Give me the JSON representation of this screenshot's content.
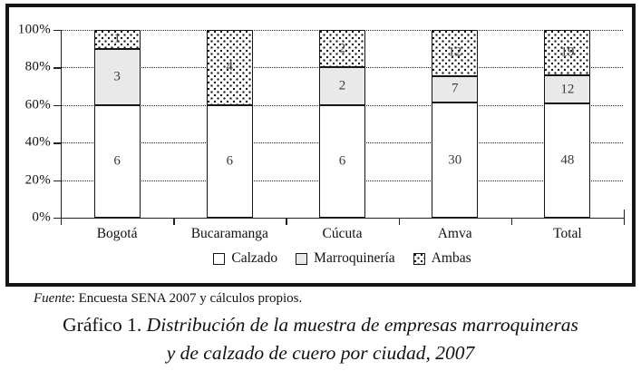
{
  "figure": {
    "source_prefix": "Fuente",
    "source_rest": ": Encuesta SENA 2007 y cálculos propios.",
    "caption_label": "Gráfico 1.",
    "caption_line1": "Distribución de la muestra de empresas marroquineras",
    "caption_line2": "y de calzado de cuero por ciudad, 2007"
  },
  "colors": {
    "frame": "#161616",
    "bar_border": "#161616",
    "calzado_fill": "#ffffff",
    "marroquineria_fill": "#e9e9e9",
    "ambas_dot": "#1a1a1a"
  },
  "chart_data": {
    "type": "bar",
    "subtype": "stacked-100-percent",
    "title": "",
    "xlabel": "",
    "ylabel": "",
    "categories": [
      "Bogotá",
      "Bucaramanga",
      "Cúcuta",
      "Amva",
      "Total"
    ],
    "series": [
      {
        "name": "Calzado",
        "fill": "white",
        "values": [
          6,
          6,
          6,
          30,
          48
        ]
      },
      {
        "name": "Marroquinería",
        "fill": "lightgray",
        "values": [
          3,
          0,
          2,
          7,
          12
        ]
      },
      {
        "name": "Ambas",
        "fill": "dotted",
        "values": [
          1,
          4,
          2,
          12,
          19
        ]
      }
    ],
    "y_axis": {
      "tick_labels": [
        "0%",
        "20%",
        "40%",
        "60%",
        "80%",
        "100%"
      ],
      "min": 0,
      "max": 100
    },
    "grid": "horizontal-dotted",
    "legend_position": "bottom",
    "value_labels": "inside-segments"
  }
}
